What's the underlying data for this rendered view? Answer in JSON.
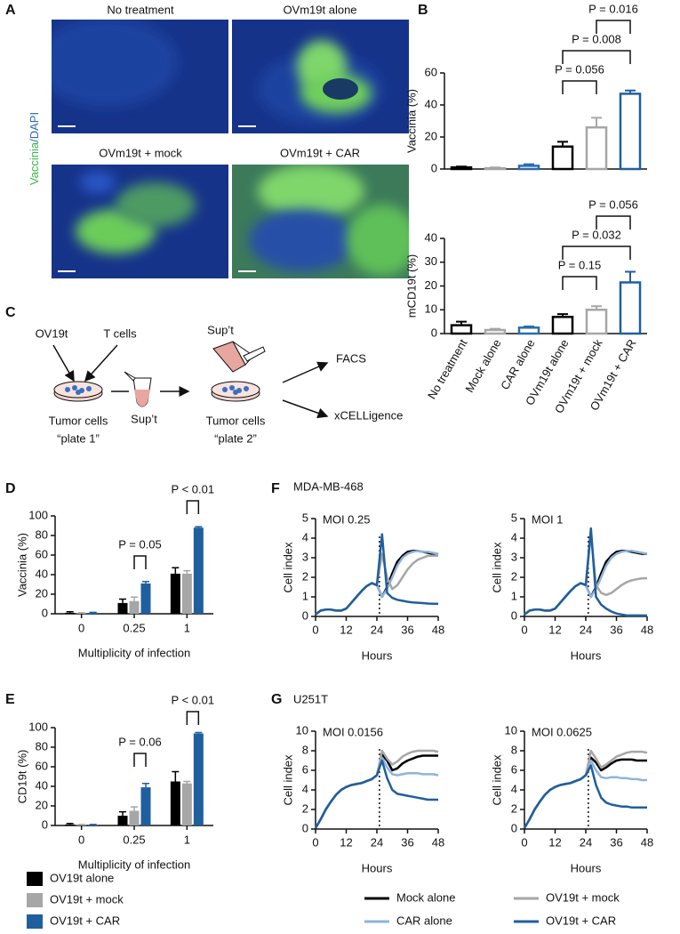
{
  "panel_labels": [
    "A",
    "B",
    "C",
    "D",
    "E",
    "F",
    "G"
  ],
  "image_panel": {
    "titles": [
      "No treatment",
      "OVm19t alone",
      "OVm19t + mock",
      "OVm19t + CAR"
    ],
    "ylabel_parts": [
      "Vaccinia",
      "/DAPI"
    ]
  },
  "diagram": {
    "inputs": [
      "OV19t",
      "T cells"
    ],
    "plate1": [
      "Tumor cells",
      "“plate 1”"
    ],
    "supernatant": [
      "Sup’t",
      "Sup’t"
    ],
    "plate2": [
      "Tumor cells",
      "“plate 2”"
    ],
    "readouts": [
      "FACS",
      "xCELLigence"
    ]
  },
  "chart_data": [
    {
      "type": "bar",
      "ylabel": "Vaccinia (%)",
      "values": [
        1,
        0.5,
        2,
        14,
        26,
        47
      ],
      "errors": [
        0.5,
        0.5,
        1,
        3,
        6,
        2
      ],
      "colors": [
        "#000000",
        "#a6a6a6",
        "#2a6bb0",
        "#000000",
        "#a6a6a6",
        "#1f5f9e"
      ],
      "ylim": [
        0,
        60
      ],
      "yticks": [
        0,
        20,
        40,
        60
      ],
      "annotations": [
        "P = 0.056",
        "P = 0.008",
        "P = 0.016"
      ]
    },
    {
      "type": "bar",
      "ylabel": "mCD19t (%)",
      "categories": [
        "No treatment",
        "Mock alone",
        "CAR alone",
        "OVm19t alone",
        "OVm19t + mock",
        "OVm19t + CAR"
      ],
      "values": [
        3.5,
        1.5,
        2.5,
        7,
        10,
        21.5
      ],
      "errors": [
        1.5,
        0.5,
        0.5,
        1.2,
        1.5,
        4.5
      ],
      "colors": [
        "#000000",
        "#a6a6a6",
        "#2a6bb0",
        "#000000",
        "#a6a6a6",
        "#1f5f9e"
      ],
      "ylim": [
        0,
        40
      ],
      "yticks": [
        0,
        10,
        20,
        30,
        40
      ],
      "annotations": [
        "P = 0.056",
        "P = 0.032",
        "P = 0.15"
      ]
    },
    {
      "type": "bar",
      "ylabel": "Vaccinia (%)",
      "xlabel": "Multiplicity of infection",
      "categories": [
        "0",
        "0.25",
        "1"
      ],
      "series": [
        {
          "name": "OV19t alone",
          "color": "#000000",
          "values": [
            1,
            11,
            41
          ],
          "errors": [
            1,
            4,
            6
          ]
        },
        {
          "name": "OV19t + mock",
          "color": "#a6a6a6",
          "values": [
            0.5,
            13,
            41
          ],
          "errors": [
            0.5,
            4,
            3
          ]
        },
        {
          "name": "OV19t + CAR",
          "color": "#1f5f9e",
          "values": [
            1,
            31,
            88
          ],
          "errors": [
            0.5,
            2,
            1
          ]
        }
      ],
      "ylim": [
        0,
        100
      ],
      "yticks": [
        0,
        20,
        40,
        60,
        80,
        100
      ],
      "annotations": [
        "P = 0.05",
        "P < 0.01"
      ]
    },
    {
      "type": "bar",
      "ylabel": "CD19t (%)",
      "xlabel": "Multiplicity of infection",
      "categories": [
        "0",
        "0.25",
        "1"
      ],
      "series": [
        {
          "name": "OV19t alone",
          "color": "#000000",
          "values": [
            1,
            10,
            45
          ],
          "errors": [
            1,
            4,
            10
          ]
        },
        {
          "name": "OV19t + mock",
          "color": "#a6a6a6",
          "values": [
            0.5,
            15,
            43
          ],
          "errors": [
            0.5,
            4,
            2
          ]
        },
        {
          "name": "OV19t + CAR",
          "color": "#1f5f9e",
          "values": [
            0.5,
            39,
            94
          ],
          "errors": [
            0.5,
            4,
            1
          ]
        }
      ],
      "ylim": [
        0,
        100
      ],
      "yticks": [
        0,
        20,
        40,
        60,
        80,
        100
      ],
      "annotations": [
        "P = 0.06",
        "P < 0.01"
      ]
    },
    {
      "type": "line",
      "group_title": "MDA-MB-468",
      "title": "MOI 0.25",
      "xlabel": "Hours",
      "ylabel": "Cell index",
      "x": [
        0,
        2,
        4,
        6,
        8,
        10,
        12,
        14,
        16,
        18,
        20,
        22,
        24,
        26,
        28,
        30,
        32,
        34,
        36,
        38,
        40,
        42,
        44,
        46,
        48
      ],
      "xlim": [
        0,
        48
      ],
      "xticks": [
        0,
        12,
        24,
        36,
        48
      ],
      "ylim": [
        0,
        5
      ],
      "yticks": [
        0,
        1,
        2,
        3,
        4,
        5
      ],
      "reference_x": 25,
      "series": [
        {
          "name": "Mock alone",
          "color": "#000000",
          "values": [
            0.1,
            0.3,
            0.35,
            0.35,
            0.3,
            0.3,
            0.4,
            0.7,
            1.0,
            1.3,
            1.55,
            1.7,
            1.6,
            1.0,
            1.5,
            2.2,
            2.8,
            3.1,
            3.3,
            3.35,
            3.35,
            3.3,
            3.25,
            3.2,
            3.15
          ]
        },
        {
          "name": "CAR alone",
          "color": "#8fb3dd",
          "values": [
            0.1,
            0.3,
            0.35,
            0.35,
            0.3,
            0.3,
            0.4,
            0.7,
            1.0,
            1.3,
            1.55,
            1.7,
            1.6,
            1.0,
            1.4,
            2.0,
            2.6,
            3.0,
            3.2,
            3.3,
            3.35,
            3.3,
            3.3,
            3.25,
            3.2
          ]
        },
        {
          "name": "OV19t + mock",
          "color": "#a6a6a6",
          "values": [
            0.1,
            0.3,
            0.35,
            0.35,
            0.3,
            0.3,
            0.4,
            0.7,
            1.0,
            1.3,
            1.55,
            1.7,
            1.6,
            3.2,
            2.0,
            1.4,
            1.6,
            2.0,
            2.4,
            2.7,
            2.9,
            3.0,
            3.1,
            3.1,
            3.1
          ]
        },
        {
          "name": "OV19t + CAR",
          "color": "#1f5f9e",
          "values": [
            0.1,
            0.3,
            0.35,
            0.35,
            0.3,
            0.3,
            0.4,
            0.7,
            1.0,
            1.3,
            1.55,
            1.7,
            1.6,
            4.2,
            1.2,
            0.95,
            0.85,
            0.8,
            0.75,
            0.72,
            0.7,
            0.68,
            0.66,
            0.65,
            0.65
          ]
        }
      ]
    },
    {
      "type": "line",
      "title": "MOI 1",
      "xlabel": "Hours",
      "ylabel": "Cell index",
      "x": [
        0,
        2,
        4,
        6,
        8,
        10,
        12,
        14,
        16,
        18,
        20,
        22,
        24,
        26,
        28,
        30,
        32,
        34,
        36,
        38,
        40,
        42,
        44,
        46,
        48
      ],
      "xlim": [
        0,
        48
      ],
      "xticks": [
        0,
        12,
        24,
        36,
        48
      ],
      "ylim": [
        0,
        5
      ],
      "yticks": [
        0,
        1,
        2,
        3,
        4,
        5
      ],
      "reference_x": 25,
      "series": [
        {
          "name": "Mock alone",
          "color": "#000000",
          "values": [
            0.1,
            0.3,
            0.35,
            0.35,
            0.3,
            0.3,
            0.4,
            0.7,
            1.0,
            1.3,
            1.55,
            1.7,
            1.6,
            1.0,
            1.5,
            2.2,
            2.8,
            3.1,
            3.3,
            3.35,
            3.35,
            3.3,
            3.25,
            3.2,
            3.2
          ]
        },
        {
          "name": "CAR alone",
          "color": "#8fb3dd",
          "values": [
            0.1,
            0.3,
            0.35,
            0.35,
            0.3,
            0.3,
            0.4,
            0.7,
            1.0,
            1.3,
            1.55,
            1.7,
            1.6,
            1.0,
            1.4,
            2.0,
            2.6,
            3.0,
            3.2,
            3.3,
            3.35,
            3.35,
            3.3,
            3.25,
            3.2
          ]
        },
        {
          "name": "OV19t + mock",
          "color": "#a6a6a6",
          "values": [
            0.1,
            0.3,
            0.35,
            0.35,
            0.3,
            0.3,
            0.4,
            0.7,
            1.0,
            1.3,
            1.55,
            1.7,
            1.6,
            4.2,
            1.6,
            1.2,
            1.1,
            1.2,
            1.4,
            1.6,
            1.75,
            1.85,
            1.9,
            1.95,
            1.95
          ]
        },
        {
          "name": "OV19t + CAR",
          "color": "#1f5f9e",
          "values": [
            0.1,
            0.3,
            0.35,
            0.35,
            0.3,
            0.3,
            0.4,
            0.7,
            1.0,
            1.3,
            1.55,
            1.7,
            1.6,
            4.5,
            1.0,
            0.6,
            0.4,
            0.25,
            0.15,
            0.1,
            0.05,
            0.05,
            0.05,
            0.05,
            0.05
          ]
        }
      ]
    },
    {
      "type": "line",
      "group_title": "U251T",
      "title": "MOI 0.0156",
      "xlabel": "Hours",
      "ylabel": "Cell index",
      "x": [
        0,
        2,
        4,
        6,
        8,
        10,
        12,
        14,
        16,
        18,
        20,
        22,
        24,
        26,
        28,
        30,
        32,
        34,
        36,
        38,
        40,
        42,
        44,
        46,
        48
      ],
      "xlim": [
        0,
        48
      ],
      "xticks": [
        0,
        12,
        24,
        36,
        48
      ],
      "ylim": [
        0,
        10
      ],
      "yticks": [
        0,
        2,
        4,
        6,
        8,
        10
      ],
      "reference_x": 25,
      "series": [
        {
          "name": "Mock alone",
          "color": "#000000",
          "values": [
            0.1,
            1.0,
            2.0,
            2.8,
            3.5,
            4.0,
            4.3,
            4.5,
            4.6,
            4.7,
            4.9,
            5.1,
            5.5,
            7.6,
            7.0,
            6.0,
            6.2,
            6.7,
            7.0,
            7.2,
            7.4,
            7.5,
            7.5,
            7.5,
            7.5
          ]
        },
        {
          "name": "CAR alone",
          "color": "#8fb3dd",
          "values": [
            0.1,
            1.0,
            2.0,
            2.8,
            3.5,
            4.0,
            4.3,
            4.5,
            4.6,
            4.7,
            4.9,
            5.1,
            5.5,
            7.3,
            6.3,
            5.6,
            5.5,
            5.6,
            5.7,
            5.7,
            5.7,
            5.6,
            5.6,
            5.6,
            5.5
          ]
        },
        {
          "name": "OV19t + mock",
          "color": "#a6a6a6",
          "values": [
            0.1,
            1.0,
            2.0,
            2.8,
            3.5,
            4.0,
            4.3,
            4.5,
            4.6,
            4.7,
            4.9,
            5.1,
            5.5,
            8.0,
            7.2,
            6.6,
            6.9,
            7.4,
            7.7,
            7.9,
            8.0,
            8.0,
            8.0,
            8.0,
            7.9
          ]
        },
        {
          "name": "OV19t + CAR",
          "color": "#1f5f9e",
          "values": [
            0.1,
            1.0,
            2.0,
            2.8,
            3.5,
            4.0,
            4.3,
            4.5,
            4.6,
            4.7,
            4.9,
            5.1,
            5.5,
            7.0,
            5.2,
            4.0,
            3.6,
            3.5,
            3.4,
            3.3,
            3.2,
            3.1,
            3.0,
            3.0,
            3.0
          ]
        }
      ]
    },
    {
      "type": "line",
      "title": "MOI 0.0625",
      "xlabel": "Hours",
      "ylabel": "Cell index",
      "x": [
        0,
        2,
        4,
        6,
        8,
        10,
        12,
        14,
        16,
        18,
        20,
        22,
        24,
        26,
        28,
        30,
        32,
        34,
        36,
        38,
        40,
        42,
        44,
        46,
        48
      ],
      "xlim": [
        0,
        48
      ],
      "xticks": [
        0,
        12,
        24,
        36,
        48
      ],
      "ylim": [
        0,
        10
      ],
      "yticks": [
        0,
        2,
        4,
        6,
        8,
        10
      ],
      "reference_x": 25,
      "series": [
        {
          "name": "Mock alone",
          "color": "#000000",
          "values": [
            0.1,
            1.0,
            2.0,
            2.8,
            3.5,
            4.0,
            4.3,
            4.5,
            4.6,
            4.7,
            4.9,
            5.1,
            5.5,
            7.3,
            6.8,
            6.0,
            6.3,
            6.7,
            7.0,
            7.1,
            7.1,
            7.1,
            7.0,
            7.0,
            7.0
          ]
        },
        {
          "name": "CAR alone",
          "color": "#8fb3dd",
          "values": [
            0.1,
            1.0,
            2.0,
            2.8,
            3.5,
            4.0,
            4.3,
            4.5,
            4.6,
            4.7,
            4.9,
            5.1,
            5.5,
            7.0,
            6.0,
            5.3,
            5.2,
            5.3,
            5.3,
            5.2,
            5.2,
            5.1,
            5.1,
            5.0,
            5.0
          ]
        },
        {
          "name": "OV19t + mock",
          "color": "#a6a6a6",
          "values": [
            0.1,
            1.0,
            2.0,
            2.8,
            3.5,
            4.0,
            4.3,
            4.5,
            4.6,
            4.7,
            4.9,
            5.1,
            5.5,
            8.0,
            7.2,
            6.3,
            6.6,
            7.0,
            7.4,
            7.6,
            7.8,
            7.9,
            7.9,
            7.9,
            7.8
          ]
        },
        {
          "name": "OV19t + CAR",
          "color": "#1f5f9e",
          "values": [
            0.1,
            1.0,
            2.0,
            2.8,
            3.5,
            4.0,
            4.3,
            4.5,
            4.6,
            4.7,
            4.9,
            5.1,
            5.5,
            6.5,
            4.5,
            3.2,
            2.7,
            2.5,
            2.4,
            2.3,
            2.3,
            2.2,
            2.2,
            2.2,
            2.2
          ]
        }
      ]
    }
  ]
}
